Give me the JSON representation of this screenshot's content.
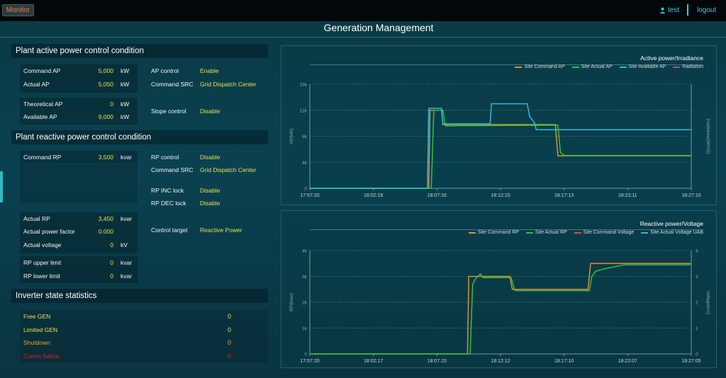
{
  "header": {
    "monitor_label": "Monitor",
    "user": "test",
    "logout": "logout",
    "title": "Generation Management"
  },
  "active_section": {
    "title": "Plant active power control condition",
    "rows": [
      {
        "label": "Command AP",
        "value": "5,000",
        "unit": "kW"
      },
      {
        "label": "Actual AP",
        "value": "5,050",
        "unit": "kW"
      },
      {
        "label": "Theoretical AP",
        "value": "0",
        "unit": "kW"
      },
      {
        "label": "Available AP",
        "value": "9,000",
        "unit": "kW"
      }
    ],
    "right": [
      {
        "label": "AP control",
        "value": "Enable"
      },
      {
        "label": "Command SRC",
        "value": "Grid Dispatch Center"
      },
      {
        "label": "Slope control",
        "value": "Disable"
      }
    ]
  },
  "reactive_section": {
    "title": "Plant reactive power control condition",
    "command": {
      "label": "Command RP",
      "value": "3,500",
      "unit": "kvar"
    },
    "rows": [
      {
        "label": "Actual RP",
        "value": "3,450",
        "unit": "kvar"
      },
      {
        "label": "Actual power factor",
        "value": "0.000",
        "unit": ""
      },
      {
        "label": "Actual voltage",
        "value": "0",
        "unit": "kV"
      },
      {
        "label": "RP upper limit",
        "value": "0",
        "unit": "kvar"
      },
      {
        "label": "RP lower limit",
        "value": "0",
        "unit": "kvar"
      }
    ],
    "right": [
      {
        "label": "RP control",
        "value": "Disable"
      },
      {
        "label": "Command SRC",
        "value": "Grid Dispatch Center"
      },
      {
        "label": "RP INC lock",
        "value": "Disable"
      },
      {
        "label": "RP DEC lock",
        "value": "Disable"
      },
      {
        "label": "Control target",
        "value": "Reactive Power"
      }
    ]
  },
  "inverter_section": {
    "title": "Inverter state statistics",
    "items": [
      {
        "label": "Free GEN",
        "value": "0",
        "color": "#e8e04a"
      },
      {
        "label": "Limited GEN",
        "value": "0",
        "color": "#e8e04a"
      },
      {
        "label": "Shutdown",
        "value": "0",
        "color": "#f0a030"
      },
      {
        "label": "Comm failure",
        "value": "0",
        "color": "#e02020"
      }
    ]
  },
  "chart_data": [
    {
      "type": "line",
      "title": "Active power/Irradiance",
      "ylabel": "AP(kW)",
      "y2label": "Irradiance(W/m2)",
      "y_ticks": [
        "0",
        "4k",
        "8k",
        "12k",
        "16k"
      ],
      "ylim": [
        0,
        16000
      ],
      "x_ticks": [
        "17:57:20",
        "18:02:18",
        "18:07:16",
        "18:12:15",
        "18:17:13",
        "18:22:11",
        "18:27:10"
      ],
      "x_minutes_range": [
        0,
        29.83
      ],
      "series": [
        {
          "name": "Site Command AP",
          "color": "#e09030",
          "points": [
            [
              0,
              0
            ],
            [
              9.3,
              0
            ],
            [
              9.4,
              12000
            ],
            [
              10.3,
              12000
            ],
            [
              10.4,
              9800
            ],
            [
              19.2,
              9800
            ],
            [
              19.4,
              5000
            ],
            [
              29.8,
              5000
            ]
          ]
        },
        {
          "name": "Site Actual AP",
          "color": "#30c040",
          "points": [
            [
              0,
              0
            ],
            [
              9.5,
              0
            ],
            [
              9.7,
              12000
            ],
            [
              10.4,
              12000
            ],
            [
              10.6,
              9600
            ],
            [
              19.4,
              9700
            ],
            [
              19.6,
              5500
            ],
            [
              19.9,
              5050
            ],
            [
              29.8,
              5050
            ]
          ]
        },
        {
          "name": "Site Available AP",
          "color": "#30b8d8",
          "points": [
            [
              0,
              0
            ],
            [
              9.2,
              0
            ],
            [
              9.3,
              12300
            ],
            [
              10.3,
              12300
            ],
            [
              10.4,
              9900
            ],
            [
              14.1,
              9900
            ],
            [
              14.2,
              13000
            ],
            [
              17.0,
              13000
            ],
            [
              17.2,
              11000
            ],
            [
              17.6,
              10000
            ],
            [
              17.7,
              9000
            ],
            [
              29.8,
              9000
            ]
          ]
        },
        {
          "name": "Radiation",
          "color": "#c040c0",
          "points": []
        }
      ]
    },
    {
      "type": "line",
      "title": "Reactive power/Voltage",
      "ylabel": "RP(kvar)",
      "y2label": "Voltage(kV)",
      "y_ticks": [
        "0",
        "1k",
        "2k",
        "3k",
        "4k"
      ],
      "y2_ticks": [
        "0",
        "1",
        "2",
        "3",
        "4"
      ],
      "ylim": [
        0,
        4000
      ],
      "x_ticks": [
        "17:57:20",
        "18:02:17",
        "18:07:15",
        "18:12:12",
        "18:17:10",
        "18:22:07",
        "18:27:05"
      ],
      "x_minutes_range": [
        0,
        29.75
      ],
      "series": [
        {
          "name": "Site Command RP",
          "color": "#e09030",
          "points": [
            [
              0,
              0
            ],
            [
              12.3,
              0
            ],
            [
              12.4,
              3000
            ],
            [
              15.6,
              3000
            ],
            [
              15.8,
              2500
            ],
            [
              21.7,
              2500
            ],
            [
              21.9,
              3500
            ],
            [
              29.7,
              3500
            ]
          ]
        },
        {
          "name": "Site Actual RP",
          "color": "#30c040",
          "points": [
            [
              0,
              0
            ],
            [
              12.5,
              0
            ],
            [
              12.7,
              2700
            ],
            [
              12.9,
              2900
            ],
            [
              13.3,
              3100
            ],
            [
              13.5,
              2950
            ],
            [
              15.7,
              2950
            ],
            [
              16.0,
              2450
            ],
            [
              21.8,
              2450
            ],
            [
              22.0,
              3000
            ],
            [
              22.3,
              3200
            ],
            [
              23.0,
              3300
            ],
            [
              24.5,
              3450
            ],
            [
              29.7,
              3450
            ]
          ]
        },
        {
          "name": "Site Command Voltage",
          "color": "#e05030",
          "points": []
        },
        {
          "name": "Site Actual Voltage UAB",
          "color": "#30b8d8",
          "points": []
        }
      ]
    }
  ]
}
